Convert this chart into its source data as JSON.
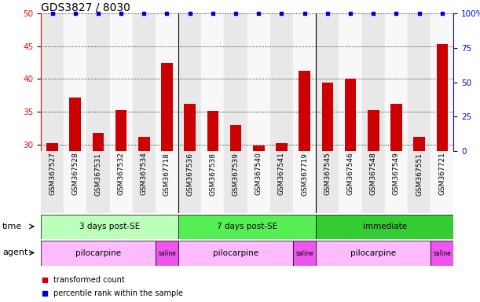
{
  "title": "GDS3827 / 8030",
  "samples": [
    "GSM367527",
    "GSM367528",
    "GSM367531",
    "GSM367532",
    "GSM367534",
    "GSM367718",
    "GSM367536",
    "GSM367538",
    "GSM367539",
    "GSM367540",
    "GSM367541",
    "GSM367719",
    "GSM367545",
    "GSM367546",
    "GSM367548",
    "GSM367549",
    "GSM367551",
    "GSM367721"
  ],
  "red_values": [
    30.2,
    37.2,
    31.8,
    35.2,
    31.2,
    42.5,
    36.2,
    35.1,
    33.0,
    29.9,
    30.2,
    41.2,
    39.4,
    40.0,
    35.3,
    36.2,
    31.2,
    45.3
  ],
  "blue_values": [
    100,
    100,
    100,
    100,
    100,
    100,
    100,
    100,
    100,
    100,
    100,
    100,
    100,
    100,
    100,
    100,
    100,
    100
  ],
  "ylim_left": [
    29,
    50
  ],
  "ylim_right": [
    0,
    100
  ],
  "yticks_left": [
    30,
    35,
    40,
    45,
    50
  ],
  "yticks_right": [
    0,
    25,
    50,
    75,
    100
  ],
  "ytick_labels_right": [
    "0",
    "25",
    "50",
    "75",
    "100%"
  ],
  "bar_color": "#cc0000",
  "dot_color": "#0000cc",
  "col_bg_even": "#e8e8e8",
  "col_bg_odd": "#f8f8f8",
  "time_groups": [
    {
      "label": "3 days post-SE",
      "start": 0,
      "end": 6,
      "color": "#bbffbb"
    },
    {
      "label": "7 days post-SE",
      "start": 6,
      "end": 12,
      "color": "#55ee55"
    },
    {
      "label": "immediate",
      "start": 12,
      "end": 18,
      "color": "#33cc33"
    }
  ],
  "agent_groups": [
    {
      "label": "pilocarpine",
      "start": 0,
      "end": 5,
      "color": "#ffbbff"
    },
    {
      "label": "saline",
      "start": 5,
      "end": 6,
      "color": "#ee55ee"
    },
    {
      "label": "pilocarpine",
      "start": 6,
      "end": 11,
      "color": "#ffbbff"
    },
    {
      "label": "saline",
      "start": 11,
      "end": 12,
      "color": "#ee55ee"
    },
    {
      "label": "pilocarpine",
      "start": 12,
      "end": 17,
      "color": "#ffbbff"
    },
    {
      "label": "saline",
      "start": 17,
      "end": 18,
      "color": "#ee55ee"
    }
  ],
  "group_borders": [
    6,
    12
  ],
  "title_fontsize": 10,
  "tick_fontsize": 7.5,
  "sample_fontsize": 6.5,
  "row_label_fontsize": 8,
  "legend_fontsize": 7,
  "annotation_fontsize": 7
}
